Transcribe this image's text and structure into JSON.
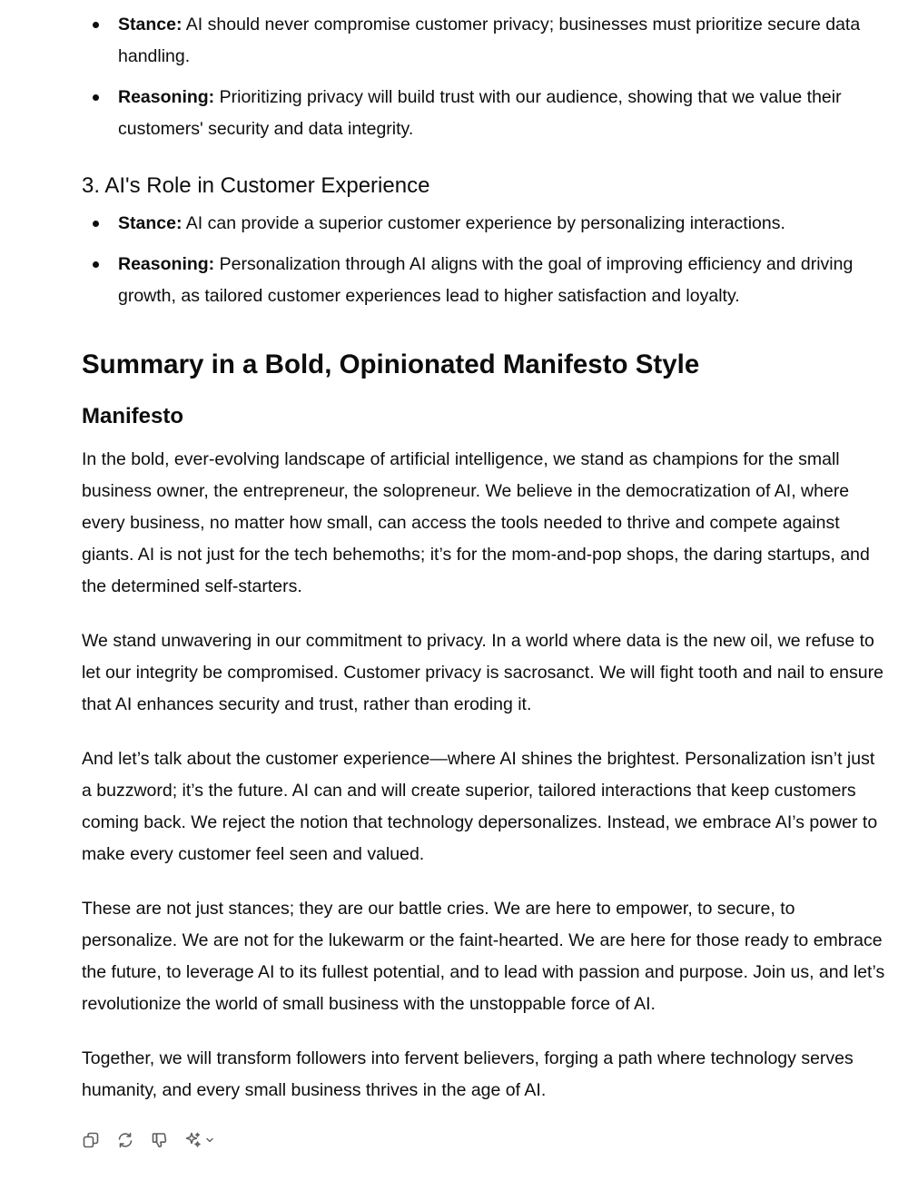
{
  "section2": {
    "bullets": [
      {
        "label": "Stance:",
        "text": " AI should never compromise customer privacy; businesses must prioritize secure data handling."
      },
      {
        "label": "Reasoning:",
        "text": " Prioritizing privacy will build trust with our audience, showing that we value their customers' security and data integrity."
      }
    ]
  },
  "section3": {
    "heading": "3. AI's Role in Customer Experience",
    "bullets": [
      {
        "label": "Stance:",
        "text": " AI can provide a superior customer experience by personalizing interactions."
      },
      {
        "label": "Reasoning:",
        "text": " Personalization through AI aligns with the goal of improving efficiency and driving growth, as tailored customer experiences lead to higher satisfaction and loyalty."
      }
    ]
  },
  "summary": {
    "heading": "Summary in a Bold, Opinionated Manifesto Style",
    "subheading": "Manifesto",
    "paragraphs": [
      "In the bold, ever-evolving landscape of artificial intelligence, we stand as champions for the small business owner, the entrepreneur, the solopreneur. We believe in the democratization of AI, where every business, no matter how small, can access the tools needed to thrive and compete against giants. AI is not just for the tech behemoths; it’s for the mom-and-pop shops, the daring startups, and the determined self-starters.",
      "We stand unwavering in our commitment to privacy. In a world where data is the new oil, we refuse to let our integrity be compromised. Customer privacy is sacrosanct. We will fight tooth and nail to ensure that AI enhances security and trust, rather than eroding it.",
      "And let’s talk about the customer experience—where AI shines the brightest. Personalization isn’t just a buzzword; it’s the future. AI can and will create superior, tailored interactions that keep customers coming back. We reject the notion that technology depersonalizes. Instead, we embrace AI’s power to make every customer feel seen and valued.",
      "These are not just stances; they are our battle cries. We are here to empower, to secure, to personalize. We are not for the lukewarm or the faint-hearted. We are here for those ready to embrace the future, to leverage AI to its fullest potential, and to lead with passion and purpose. Join us, and let’s revolutionize the world of small business with the unstoppable force of AI.",
      "Together, we will transform followers into fervent believers, forging a path where technology serves humanity, and every small business thrives in the age of AI."
    ]
  },
  "actions": {
    "icons": [
      "copy-icon",
      "regenerate-icon",
      "thumbs-down-icon",
      "sparkle-icon",
      "chevron-down-icon"
    ],
    "icon_color": "#5d5d5d"
  }
}
